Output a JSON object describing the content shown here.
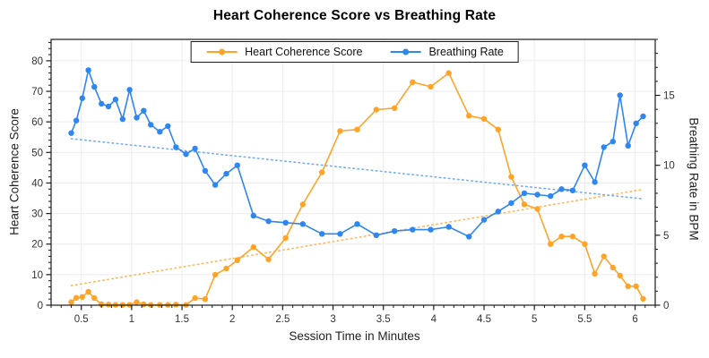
{
  "chart_data": {
    "type": "line",
    "title": "Heart Coherence Score vs Breathing Rate",
    "xlabel": "Session Time in Minutes",
    "ylabel_left": "Heart Coherence Score",
    "ylabel_right": "Breathing Rate in BPM",
    "legend_position": "top-center",
    "grid": {
      "vertical": true,
      "horizontal": true,
      "color": "#ececec"
    },
    "frame_color": "#1a1a1a",
    "tick_label_color": "#333333",
    "x": [
      0.4,
      0.45,
      0.51,
      0.57,
      0.63,
      0.7,
      0.77,
      0.84,
      0.91,
      0.98,
      1.05,
      1.12,
      1.19,
      1.28,
      1.36,
      1.44,
      1.54,
      1.63,
      1.73,
      1.83,
      1.94,
      2.05,
      2.21,
      2.36,
      2.53,
      2.7,
      2.89,
      3.07,
      3.24,
      3.43,
      3.61,
      3.79,
      3.97,
      4.15,
      4.35,
      4.5,
      4.64,
      4.77,
      4.9,
      5.03,
      5.16,
      5.27,
      5.38,
      5.5,
      5.6,
      5.69,
      5.78,
      5.85,
      5.93,
      6.01,
      6.08
    ],
    "series": [
      {
        "name": "Heart Coherence Score",
        "axis": "left",
        "color": "#FFA428",
        "trend_color": "#FFB95E",
        "values": [
          1.0,
          2.4,
          2.7,
          4.4,
          2.3,
          0.3,
          0.2,
          0.1,
          0.1,
          0.1,
          1.0,
          0.3,
          0.1,
          0.1,
          0.1,
          0.2,
          0.1,
          2.3,
          2.0,
          10.0,
          12.0,
          14.7,
          19.0,
          15.0,
          22.0,
          33.0,
          43.5,
          57.0,
          57.5,
          64.0,
          64.5,
          73.0,
          71.5,
          76.0,
          62.0,
          61.0,
          57.5,
          42.0,
          33.0,
          31.5,
          20.0,
          22.5,
          22.5,
          20.0,
          10.3,
          16.0,
          12.3,
          9.7,
          6.2,
          6.2,
          2.1
        ],
        "trend": {
          "x1": 0.4,
          "y1": 6.4,
          "x2": 6.08,
          "y2": 37.9
        }
      },
      {
        "name": "Breathing Rate",
        "axis": "right",
        "color": "#2E86F0",
        "trend_color": "#74ADF5",
        "values": [
          12.3,
          13.2,
          14.8,
          16.8,
          15.6,
          14.4,
          14.2,
          14.7,
          13.3,
          15.4,
          13.4,
          13.9,
          12.9,
          12.4,
          12.8,
          11.3,
          10.8,
          11.2,
          9.6,
          8.6,
          9.4,
          10.0,
          6.4,
          6.0,
          5.9,
          5.8,
          5.1,
          5.1,
          5.8,
          5.0,
          5.3,
          5.4,
          5.4,
          5.6,
          4.9,
          6.1,
          6.7,
          7.3,
          8.0,
          7.9,
          7.8,
          8.3,
          8.2,
          10.0,
          8.8,
          11.3,
          11.7,
          15.0,
          11.4,
          13.0,
          13.5
        ],
        "trend": {
          "x1": 0.4,
          "y1": 11.9,
          "x2": 6.08,
          "y2": 7.6
        }
      }
    ],
    "axes": {
      "x": {
        "min": 0.2,
        "max": 6.2,
        "major_ticks": [
          0.5,
          1,
          1.5,
          2,
          2.5,
          3,
          3.5,
          4,
          4.5,
          5,
          5.5,
          6
        ],
        "tick_labels": [
          "0.5",
          "1",
          "1.5",
          "2",
          "2.5",
          "3",
          "3.5",
          "4",
          "4.5",
          "5",
          "5.5",
          "6"
        ],
        "minor_step": 0.1
      },
      "left": {
        "min": 0,
        "max": 87,
        "major_ticks": [
          0,
          10,
          20,
          30,
          40,
          50,
          60,
          70,
          80
        ],
        "minor_step": 2
      },
      "right": {
        "min": 0,
        "max": 19,
        "major_ticks": [
          0,
          5,
          10,
          15
        ],
        "minor_step": 1
      }
    }
  }
}
